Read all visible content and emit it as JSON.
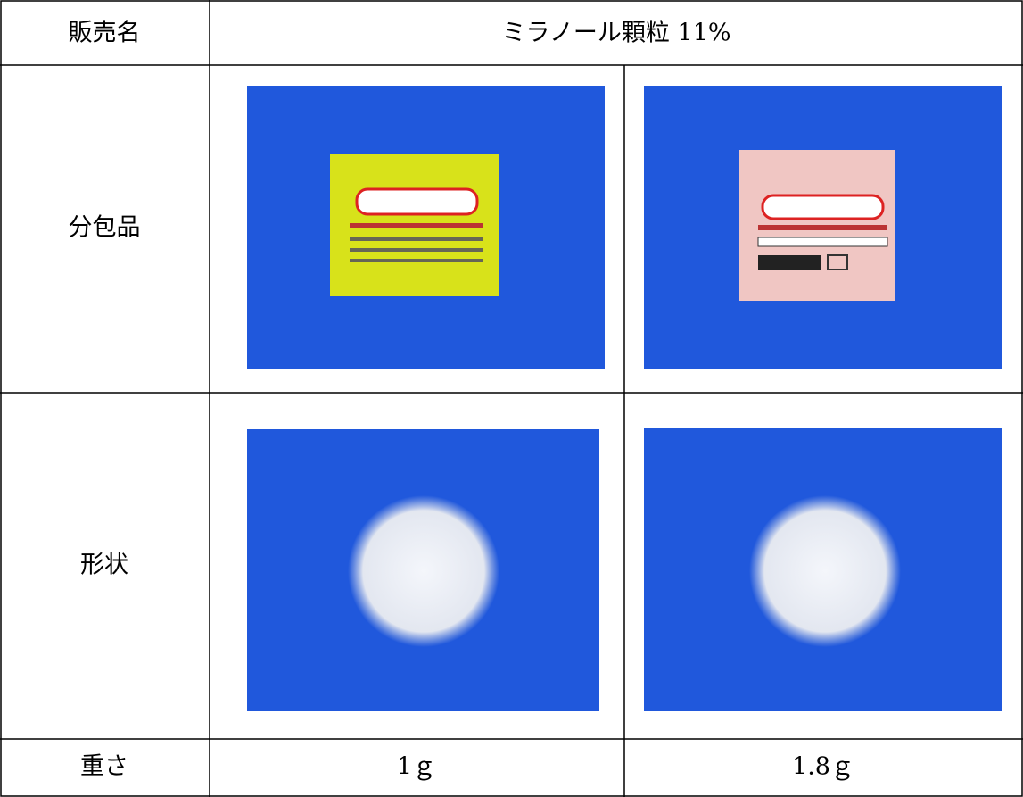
{
  "table": {
    "header": [
      "販売名",
      "ミラノール顆粒 11%"
    ],
    "rows": [
      [
        "分包品"
      ],
      [
        "形状"
      ],
      [
        "重さ",
        "1ｇ",
        "1.8ｇ"
      ]
    ]
  }
}
